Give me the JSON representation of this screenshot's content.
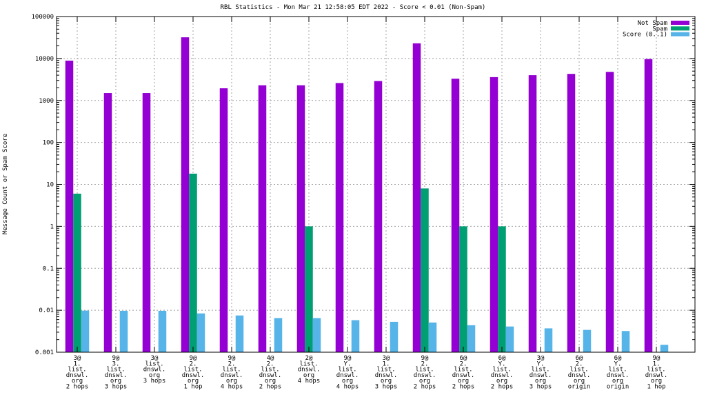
{
  "chart_data": {
    "type": "bar",
    "title": "RBL Statistics - Mon Mar 21 12:58:05 EDT 2022 - Score < 0.01 (Non-Spam)",
    "xlabel": "",
    "ylabel": "Message Count or Spam Score",
    "yscale": "log",
    "ylim": [
      0.001,
      100000
    ],
    "yticks": [
      "0.001",
      "0.01",
      "0.1",
      "1",
      "10",
      "100",
      "1000",
      "10000",
      "100000"
    ],
    "grid": true,
    "legend_position": "top-right",
    "categories": [
      [
        "3@",
        "1.",
        "list.",
        "dnswl.",
        "org",
        "2 hops"
      ],
      [
        "9@",
        "3.",
        "list.",
        "dnswl.",
        "org",
        "3 hops"
      ],
      [
        "3@",
        "list.",
        "dnswl.",
        "org",
        "3 hops"
      ],
      [
        "9@",
        "2.",
        "list.",
        "dnswl.",
        "org",
        "1 hop"
      ],
      [
        "9@",
        "2.",
        "list.",
        "dnswl.",
        "org",
        "4 hops"
      ],
      [
        "4@",
        "2.",
        "list.",
        "dnswl.",
        "org",
        "2 hops"
      ],
      [
        "2@",
        "list.",
        "dnswl.",
        "org",
        "4 hops"
      ],
      [
        "9@",
        "Y.",
        "list.",
        "dnswl.",
        "org",
        "4 hops"
      ],
      [
        "3@",
        "1.",
        "list.",
        "dnswl.",
        "org",
        "3 hops"
      ],
      [
        "9@",
        "2.",
        "list.",
        "dnswl.",
        "org",
        "2 hops"
      ],
      [
        "6@",
        "2.",
        "list.",
        "dnswl.",
        "org",
        "2 hops"
      ],
      [
        "6@",
        "Y.",
        "list.",
        "dnswl.",
        "org",
        "2 hops"
      ],
      [
        "3@",
        "Y.",
        "list.",
        "dnswl.",
        "org",
        "3 hops"
      ],
      [
        "6@",
        "2.",
        "list.",
        "dnswl.",
        "org",
        "origin"
      ],
      [
        "6@",
        "Y.",
        "list.",
        "dnswl.",
        "org",
        "origin"
      ],
      [
        "9@",
        "1.",
        "list.",
        "dnswl.",
        "org",
        "1 hop"
      ]
    ],
    "series": [
      {
        "name": "Not Spam",
        "color": "#9400d3",
        "values": [
          8900,
          1500,
          1500,
          32000,
          1950,
          2300,
          2300,
          2600,
          2900,
          23000,
          3300,
          3600,
          4000,
          4300,
          4800,
          9700
        ]
      },
      {
        "name": "Spam",
        "color": "#009e73",
        "values": [
          6,
          null,
          null,
          18,
          null,
          null,
          1,
          null,
          null,
          8,
          1,
          1,
          null,
          null,
          null,
          null
        ]
      },
      {
        "name": "Score (0..1)",
        "color": "#56b4e9",
        "values": [
          0.0098,
          0.0097,
          0.0097,
          0.0084,
          0.0075,
          0.0065,
          0.0065,
          0.0058,
          0.0053,
          0.0051,
          0.0044,
          0.0041,
          0.0037,
          0.0034,
          0.0032,
          0.0015
        ]
      }
    ]
  }
}
